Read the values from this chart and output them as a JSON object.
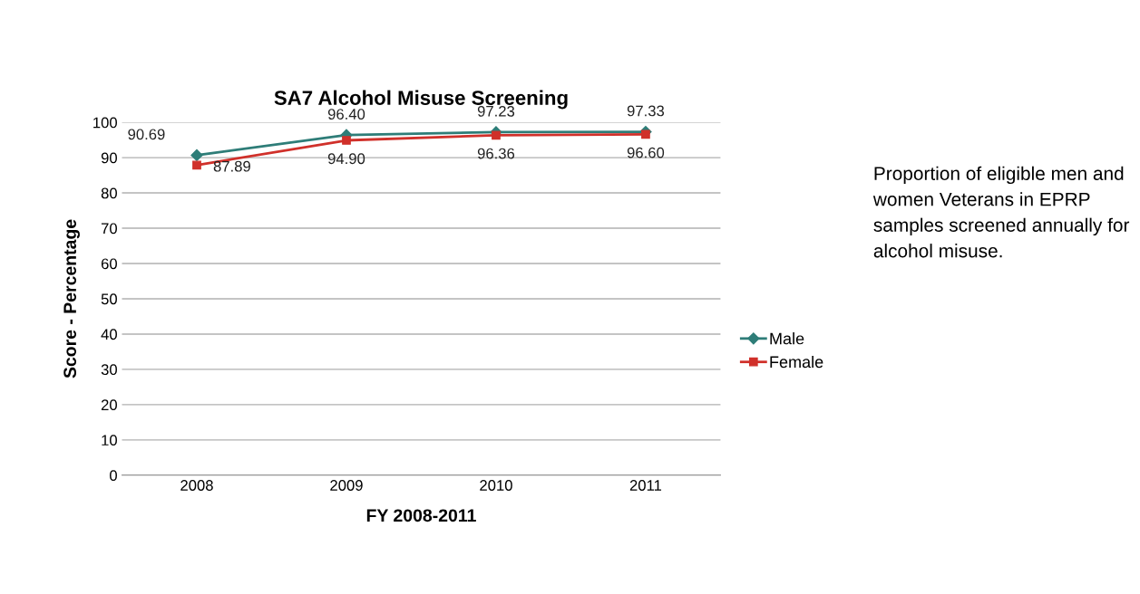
{
  "chart_data": {
    "type": "line",
    "title": "SA7 Alcohol Misuse Screening",
    "xlabel": "FY 2008-2011",
    "ylabel": "Score - Percentage",
    "categories": [
      "2008",
      "2009",
      "2010",
      "2011"
    ],
    "series": [
      {
        "name": "Male",
        "color": "#2e7d78",
        "marker": "diamond",
        "values": [
          90.69,
          96.4,
          97.23,
          97.33
        ],
        "value_labels": [
          "90.69",
          "96.40",
          "97.23",
          "97.33"
        ]
      },
      {
        "name": "Female",
        "color": "#d0302a",
        "marker": "square",
        "values": [
          87.89,
          94.9,
          96.36,
          96.6
        ],
        "value_labels": [
          "87.89",
          "94.90",
          "96.36",
          "96.60"
        ]
      }
    ],
    "ylim": [
      0,
      100
    ],
    "yticks": [
      0,
      10,
      20,
      30,
      40,
      50,
      60,
      70,
      80,
      90,
      100
    ],
    "grid": "y",
    "legend": "right",
    "line_style": "solid",
    "annotations": [
      "Proportion of eligible men and women Veterans in EPRP samples screened annually for alcohol misuse."
    ]
  }
}
